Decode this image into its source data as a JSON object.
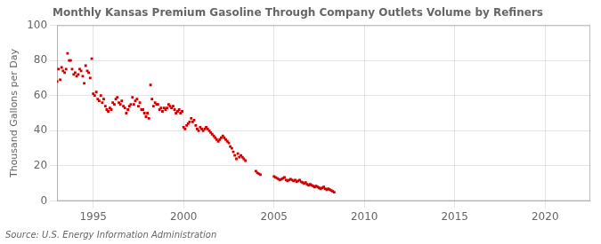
{
  "chart_data": {
    "type": "scatter",
    "title": "Monthly Kansas Premium Gasoline Through Company Outlets Volume by Refiners",
    "y_label": "Thousand Gallons per Day",
    "annotation": "Source: U.S. Energy Information Administration",
    "color": "#cc0000",
    "marker": "square",
    "grid": true,
    "xlim": [
      1993.0,
      2022.5
    ],
    "xticks": [
      1995,
      2000,
      2005,
      2010,
      2015,
      2020
    ],
    "ylim": [
      0,
      100
    ],
    "yticks": [
      0,
      20,
      40,
      60,
      80,
      100
    ],
    "x": [
      1993.0,
      1993.08,
      1993.17,
      1993.25,
      1993.33,
      1993.42,
      1993.5,
      1993.58,
      1993.67,
      1993.75,
      1993.83,
      1993.92,
      1994.0,
      1994.08,
      1994.17,
      1994.25,
      1994.33,
      1994.42,
      1994.5,
      1994.58,
      1994.67,
      1994.75,
      1994.83,
      1994.92,
      1995.0,
      1995.08,
      1995.17,
      1995.25,
      1995.33,
      1995.42,
      1995.5,
      1995.58,
      1995.67,
      1995.75,
      1995.83,
      1995.92,
      1996.0,
      1996.08,
      1996.17,
      1996.25,
      1996.33,
      1996.42,
      1996.5,
      1996.58,
      1996.67,
      1996.75,
      1996.83,
      1996.92,
      1997.0,
      1997.08,
      1997.17,
      1997.25,
      1997.33,
      1997.42,
      1997.5,
      1997.58,
      1997.67,
      1997.75,
      1997.83,
      1997.92,
      1998.0,
      1998.08,
      1998.17,
      1998.25,
      1998.33,
      1998.42,
      1998.5,
      1998.58,
      1998.67,
      1998.75,
      1998.83,
      1998.92,
      1999.0,
      1999.08,
      1999.17,
      1999.25,
      1999.33,
      1999.42,
      1999.5,
      1999.58,
      1999.67,
      1999.75,
      1999.83,
      1999.92,
      2000.0,
      2000.08,
      2000.17,
      2000.25,
      2000.33,
      2000.42,
      2000.5,
      2000.58,
      2000.67,
      2000.75,
      2000.83,
      2000.92,
      2001.0,
      2001.08,
      2001.17,
      2001.25,
      2001.33,
      2001.42,
      2001.5,
      2001.58,
      2001.67,
      2001.75,
      2001.83,
      2001.92,
      2002.0,
      2002.08,
      2002.17,
      2002.25,
      2002.33,
      2002.42,
      2002.5,
      2002.58,
      2002.67,
      2002.75,
      2002.83,
      2002.92,
      2003.0,
      2003.08,
      2003.17,
      2003.25,
      2003.33,
      2003.42,
      2004.0,
      2004.08,
      2004.17,
      2004.25,
      2005.0,
      2005.08,
      2005.17,
      2005.25,
      2005.33,
      2005.42,
      2005.5,
      2005.58,
      2005.67,
      2005.75,
      2005.83,
      2005.92,
      2006.0,
      2006.08,
      2006.17,
      2006.25,
      2006.33,
      2006.42,
      2006.5,
      2006.58,
      2006.67,
      2006.75,
      2006.83,
      2006.92,
      2007.0,
      2007.08,
      2007.17,
      2007.25,
      2007.33,
      2007.42,
      2007.5,
      2007.58,
      2007.67,
      2007.75,
      2007.83,
      2007.92,
      2008.0,
      2008.08,
      2008.17,
      2008.25,
      2008.33
    ],
    "values": [
      68.0,
      75.0,
      69.0,
      76.0,
      74.0,
      73.0,
      75.0,
      84.0,
      80.0,
      80.0,
      75.0,
      72.0,
      73.0,
      71.0,
      72.0,
      75.0,
      74.0,
      71.0,
      67.0,
      77.0,
      74.0,
      73.0,
      70.0,
      81.0,
      61.0,
      60.0,
      62.0,
      58.0,
      57.0,
      60.0,
      56.0,
      58.0,
      54.0,
      52.0,
      51.0,
      53.0,
      52.0,
      56.0,
      55.0,
      58.0,
      59.0,
      56.0,
      55.0,
      57.0,
      54.0,
      53.0,
      50.0,
      52.0,
      54.0,
      55.0,
      59.0,
      55.0,
      57.0,
      58.0,
      54.0,
      56.0,
      52.0,
      52.0,
      50.0,
      48.0,
      50.0,
      47.0,
      66.0,
      58.0,
      54.0,
      56.0,
      55.0,
      55.0,
      52.0,
      53.0,
      51.0,
      53.0,
      52.0,
      53.0,
      55.0,
      54.0,
      53.0,
      54.0,
      52.0,
      50.0,
      51.0,
      52.0,
      50.0,
      51.0,
      42.0,
      41.0,
      43.0,
      44.0,
      45.0,
      47.0,
      45.0,
      46.0,
      43.0,
      41.0,
      40.0,
      42.0,
      41.0,
      40.0,
      41.0,
      42.0,
      41.0,
      40.0,
      39.0,
      38.0,
      37.0,
      36.0,
      35.0,
      34.0,
      35.0,
      36.0,
      37.0,
      36.0,
      35.0,
      34.0,
      33.0,
      31.0,
      30.0,
      28.0,
      26.0,
      24.0,
      27.0,
      25.0,
      26.0,
      25.0,
      24.0,
      23.0,
      17.0,
      16.0,
      15.5,
      15.0,
      14.0,
      13.5,
      13.0,
      12.5,
      12.0,
      12.5,
      13.0,
      13.5,
      12.0,
      11.5,
      12.0,
      12.5,
      12.0,
      11.5,
      12.0,
      11.0,
      11.5,
      12.0,
      11.0,
      10.5,
      10.0,
      10.5,
      9.5,
      9.0,
      9.5,
      9.0,
      8.5,
      8.0,
      8.5,
      8.0,
      7.5,
      7.0,
      7.5,
      8.0,
      7.0,
      6.5,
      7.0,
      6.5,
      6.0,
      5.5,
      5.0
    ]
  }
}
